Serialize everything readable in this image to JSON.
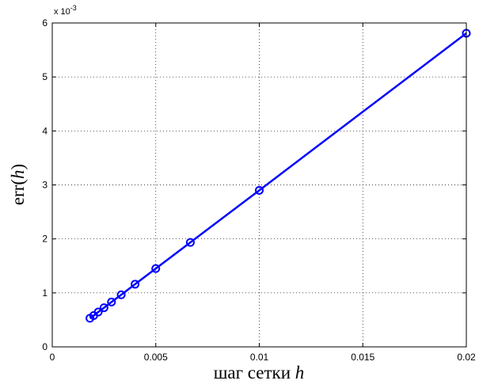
{
  "chart_data": {
    "type": "line",
    "xlabel": {
      "text": "шаг сетки ",
      "var": "h"
    },
    "ylabel": {
      "pre": "err(",
      "var": "h",
      "post": ")"
    },
    "y_multiplier": {
      "base": "x 10",
      "exp": "-3"
    },
    "xlim": [
      0,
      0.02
    ],
    "ylim": [
      0,
      6
    ],
    "x_ticks": [
      0,
      0.005,
      0.01,
      0.015,
      0.02
    ],
    "x_tick_labels": [
      "0",
      "0.005",
      "0.01",
      "0.015",
      "0.02"
    ],
    "y_ticks": [
      0,
      1,
      2,
      3,
      4,
      5,
      6
    ],
    "y_tick_labels": [
      "0",
      "1",
      "2",
      "3",
      "4",
      "5",
      "6"
    ],
    "grid": true,
    "colors": {
      "series": "#0000ff",
      "grid": "#000000",
      "axes": "#000000"
    },
    "series": [
      {
        "marker": "circle",
        "x": [
          0.00182,
          0.002,
          0.00222,
          0.0025,
          0.00286,
          0.00333,
          0.004,
          0.005,
          0.00667,
          0.01,
          0.02
        ],
        "y": [
          0.53,
          0.58,
          0.645,
          0.725,
          0.83,
          0.965,
          1.16,
          1.45,
          1.935,
          2.9,
          5.81
        ]
      }
    ]
  }
}
